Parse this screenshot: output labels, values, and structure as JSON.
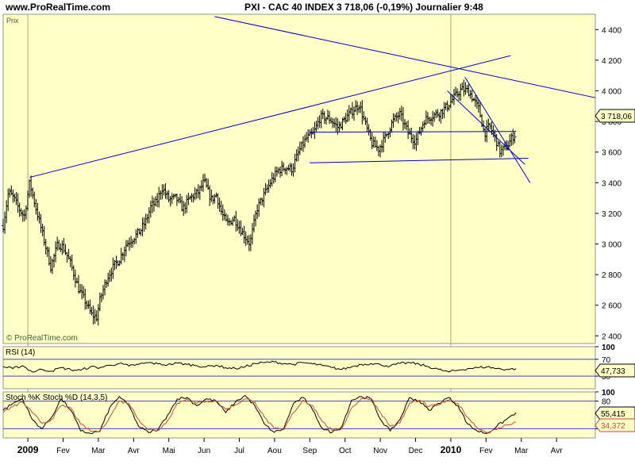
{
  "header": {
    "site": "www.ProRealTime.com",
    "headline": "PXI - CAC 40 INDEX    3 718,06 (-0,19%)    Journalier  9:48"
  },
  "panels": {
    "price": {
      "label": "Prix",
      "watermark": "© ProRealTime.com",
      "last_value": "3 718,06"
    },
    "rsi": {
      "label": "RSI (14)",
      "last_value": "47,733"
    },
    "stoch": {
      "label": "Stoch %K Stoch %D (14,3,5)",
      "last_k": "55,415",
      "last_d": "34,372"
    }
  },
  "colors": {
    "panel_bg": "#ffffc8",
    "bars": "#000000",
    "trendlines": "#0000cc",
    "rsi_line": "#000000",
    "stoch_k": "#000000",
    "stoch_d": "#cc4444",
    "last_box_bg": "#ffffc8"
  },
  "chart_data": [
    {
      "type": "ohlc",
      "title": "PXI - CAC 40 INDEX",
      "ylabel": "Prix",
      "ylim": [
        2350,
        4500
      ],
      "y_ticks": [
        "4 400",
        "4 200",
        "4 000",
        "3 800",
        "3 600",
        "3 400",
        "3 200",
        "3 000",
        "2 800",
        "2 600",
        "2 400"
      ],
      "y_tick_values": [
        4400,
        4200,
        4000,
        3800,
        3600,
        3400,
        3200,
        3000,
        2800,
        2600,
        2400
      ],
      "x_ticks": [
        "2009",
        "Fev",
        "Mar",
        "Avr",
        "Mai",
        "Jun",
        "Jul",
        "Aou",
        "Sep",
        "Oct",
        "Nov",
        "Dec",
        "2010",
        "Fev",
        "Mar",
        "Avr"
      ],
      "x_tick_months": [
        0,
        1,
        2,
        3,
        4,
        5,
        6,
        7,
        8,
        9,
        10,
        11,
        12,
        13,
        14,
        15
      ],
      "x_range_months": [
        -0.7,
        16.1
      ],
      "last_value": 3718.06,
      "close_path": [
        [
          -0.7,
          3120
        ],
        [
          -0.55,
          3340
        ],
        [
          -0.4,
          3300
        ],
        [
          -0.25,
          3230
        ],
        [
          -0.1,
          3180
        ],
        [
          0.05,
          3400
        ],
        [
          0.2,
          3260
        ],
        [
          0.4,
          3080
        ],
        [
          0.65,
          2850
        ],
        [
          0.85,
          3000
        ],
        [
          1.0,
          2980
        ],
        [
          1.2,
          2880
        ],
        [
          1.45,
          2700
        ],
        [
          1.6,
          2640
        ],
        [
          1.8,
          2540
        ],
        [
          1.95,
          2520
        ],
        [
          2.05,
          2640
        ],
        [
          2.25,
          2780
        ],
        [
          2.45,
          2860
        ],
        [
          2.6,
          2900
        ],
        [
          2.8,
          3000
        ],
        [
          3.0,
          3040
        ],
        [
          3.2,
          3090
        ],
        [
          3.35,
          3150
        ],
        [
          3.5,
          3250
        ],
        [
          3.65,
          3270
        ],
        [
          3.8,
          3370
        ],
        [
          4.0,
          3290
        ],
        [
          4.2,
          3300
        ],
        [
          4.4,
          3230
        ],
        [
          4.6,
          3300
        ],
        [
          4.85,
          3340
        ],
        [
          5.0,
          3410
        ],
        [
          5.2,
          3290
        ],
        [
          5.35,
          3320
        ],
        [
          5.5,
          3200
        ],
        [
          5.65,
          3130
        ],
        [
          5.85,
          3170
        ],
        [
          6.1,
          3070
        ],
        [
          6.3,
          3000
        ],
        [
          6.5,
          3230
        ],
        [
          6.7,
          3320
        ],
        [
          6.9,
          3410
        ],
        [
          7.1,
          3480
        ],
        [
          7.3,
          3500
        ],
        [
          7.5,
          3490
        ],
        [
          7.7,
          3610
        ],
        [
          7.9,
          3690
        ],
        [
          8.1,
          3720
        ],
        [
          8.3,
          3830
        ],
        [
          8.55,
          3820
        ],
        [
          8.8,
          3760
        ],
        [
          9.05,
          3830
        ],
        [
          9.25,
          3880
        ],
        [
          9.4,
          3910
        ],
        [
          9.55,
          3800
        ],
        [
          9.75,
          3660
        ],
        [
          9.95,
          3620
        ],
        [
          10.15,
          3700
        ],
        [
          10.35,
          3800
        ],
        [
          10.55,
          3850
        ],
        [
          10.8,
          3720
        ],
        [
          11.0,
          3670
        ],
        [
          11.25,
          3810
        ],
        [
          11.5,
          3840
        ],
        [
          11.7,
          3860
        ],
        [
          11.9,
          3900
        ],
        [
          12.1,
          3960
        ],
        [
          12.3,
          4010
        ],
        [
          12.5,
          4000
        ],
        [
          12.65,
          3940
        ],
        [
          12.8,
          3880
        ],
        [
          12.95,
          3720
        ],
        [
          13.1,
          3770
        ],
        [
          13.25,
          3700
        ],
        [
          13.4,
          3600
        ],
        [
          13.5,
          3620
        ],
        [
          13.6,
          3640
        ],
        [
          13.75,
          3700
        ],
        [
          13.85,
          3718
        ]
      ],
      "trendlines": [
        {
          "from": [
            0.05,
            3435
          ],
          "to": [
            13.7,
            4230
          ]
        },
        {
          "from": [
            5.3,
            4485
          ],
          "to": [
            16.1,
            3955
          ]
        },
        {
          "from": [
            8.0,
            3730
          ],
          "to": [
            13.85,
            3735
          ]
        },
        {
          "from": [
            8.0,
            3530
          ],
          "to": [
            14.2,
            3560
          ]
        },
        {
          "from": [
            11.9,
            4000
          ],
          "to": [
            14.1,
            3520
          ]
        },
        {
          "from": [
            12.4,
            4090
          ],
          "to": [
            14.25,
            3400
          ]
        }
      ]
    },
    {
      "type": "line",
      "title": "RSI (14)",
      "ylim": [
        0,
        100
      ],
      "y_ticks": [
        "100",
        "70",
        "30"
      ],
      "y_tick_values": [
        100,
        70,
        30
      ],
      "last_value": 47.733,
      "series": [
        {
          "name": "RSI (14)",
          "values": [
            52,
            48,
            55,
            40,
            46,
            42,
            50,
            45,
            44,
            52,
            50,
            56,
            60,
            54,
            58,
            62,
            59,
            57,
            61,
            58,
            55,
            52,
            56,
            50,
            48,
            52,
            60,
            62,
            64,
            60,
            58,
            62,
            59,
            55,
            50,
            46,
            52,
            58,
            60,
            57,
            54,
            60,
            62,
            58,
            52,
            46,
            40,
            44,
            48,
            50,
            52,
            48,
            46,
            47.7
          ]
        }
      ]
    },
    {
      "type": "line",
      "title": "Stoch %K Stoch %D (14,3,5)",
      "ylim": [
        0,
        100
      ],
      "y_ticks": [
        "100",
        "80",
        "20"
      ],
      "y_tick_values": [
        100,
        80,
        20
      ],
      "last_k": 55.415,
      "last_d": 34.372,
      "series": [
        {
          "name": "Stoch %K",
          "values": [
            60,
            75,
            85,
            40,
            20,
            45,
            85,
            60,
            15,
            10,
            15,
            65,
            90,
            70,
            25,
            12,
            18,
            50,
            85,
            88,
            70,
            85,
            80,
            55,
            78,
            92,
            70,
            30,
            12,
            20,
            75,
            88,
            60,
            20,
            12,
            25,
            82,
            90,
            85,
            40,
            15,
            40,
            88,
            80,
            60,
            75,
            88,
            70,
            30,
            15,
            10,
            25,
            40,
            55.4
          ]
        },
        {
          "name": "Stoch %D",
          "values": [
            55,
            68,
            78,
            55,
            32,
            40,
            70,
            65,
            30,
            15,
            14,
            45,
            80,
            75,
            40,
            18,
            16,
            38,
            75,
            85,
            75,
            80,
            80,
            62,
            72,
            85,
            78,
            45,
            20,
            18,
            55,
            82,
            70,
            35,
            16,
            20,
            65,
            85,
            86,
            55,
            25,
            32,
            75,
            82,
            68,
            72,
            82,
            75,
            45,
            22,
            12,
            18,
            28,
            34.4
          ]
        }
      ]
    }
  ]
}
